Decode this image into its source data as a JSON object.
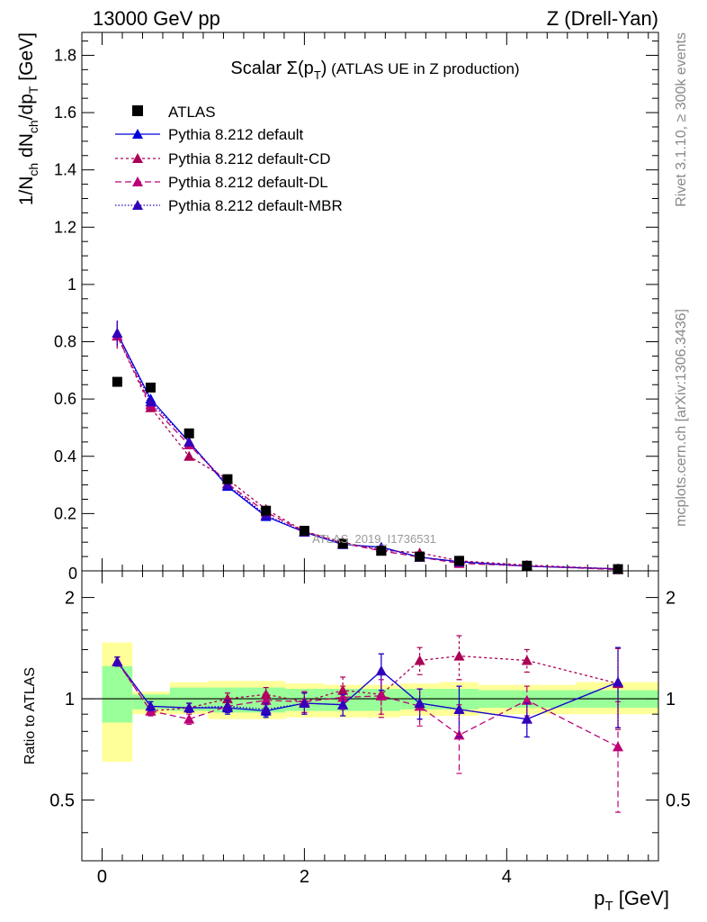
{
  "header": {
    "left": "13000 GeV pp",
    "right": "Z (Drell-Yan)"
  },
  "side": {
    "rivet": "Rivet 3.1.10, ≥ 300k events",
    "mcplots": "mcplots.cern.ch [arXiv:1306.3436]"
  },
  "colors": {
    "data": "#000000",
    "default": "#0000dd",
    "cd": "#aa0055",
    "dl": "#bb0077",
    "mbr": "#3300bb",
    "band_yellow": "#ffff99",
    "band_green": "#99ff99"
  },
  "chart_data": [
    {
      "type": "scatter",
      "title": "Scalar Σ(p_T) (ATLAS UE in Z production)",
      "title_main": "Scalar Σ(p",
      "title_sub": "T",
      "title_close": ")",
      "title_rest": " (ATLAS UE in Z production)",
      "watermark": "ATLAS_2019_I1736531",
      "ylabel": "1/N_ch dN_ch/dp_T [GeV]",
      "xlim": [
        -0.2,
        5.5
      ],
      "ylim": [
        0,
        1.88
      ],
      "yticks": [
        0.2,
        0.4,
        0.6,
        0.8,
        1,
        1.2,
        1.4,
        1.6,
        1.8
      ],
      "ytick_labels": [
        "0.2",
        "0.4",
        "0.6",
        "0.8",
        "1",
        "1.2",
        "1.4",
        "1.6",
        "1.8"
      ],
      "bottom_tick_label": "0",
      "x": [
        0.15,
        0.48,
        0.86,
        1.24,
        1.62,
        2.0,
        2.38,
        2.76,
        3.14,
        3.53,
        4.2,
        5.1
      ],
      "legend": [
        "ATLAS",
        "Pythia 8.212 default",
        "Pythia 8.212 default-CD",
        "Pythia 8.212 default-DL",
        "Pythia 8.212 default-MBR"
      ],
      "series": [
        {
          "name": "ATLAS",
          "values": [
            0.66,
            0.64,
            0.48,
            0.32,
            0.21,
            0.14,
            0.095,
            0.07,
            0.05,
            0.035,
            0.018,
            0.006
          ]
        },
        {
          "name": "Pythia 8.212 default",
          "values": [
            0.83,
            0.6,
            0.45,
            0.295,
            0.19,
            0.135,
            0.092,
            0.083,
            0.048,
            0.032,
            0.016,
            0.007
          ]
        },
        {
          "name": "Pythia 8.212 default-CD",
          "values": [
            0.82,
            0.57,
            0.4,
            0.32,
            0.215,
            0.138,
            0.1,
            0.072,
            0.063,
            0.035,
            0.02,
            0.0065
          ]
        },
        {
          "name": "Pythia 8.212 default-DL",
          "values": [
            0.82,
            0.58,
            0.44,
            0.305,
            0.205,
            0.137,
            0.096,
            0.07,
            0.048,
            0.026,
            0.017,
            0.0045
          ]
        },
        {
          "name": "Pythia 8.212 default-MBR",
          "values": [
            0.83,
            0.59,
            0.45,
            0.3,
            0.195,
            0.135,
            0.094,
            0.08,
            0.048,
            0.031,
            0.016,
            0.007
          ]
        }
      ]
    },
    {
      "type": "scatter",
      "title": "Ratio to ATLAS",
      "ylabel": "Ratio to ATLAS",
      "xlabel": "p_T [GeV]",
      "xlabel_main": "p",
      "xlabel_sub": "T",
      "xlabel_unit": " [GeV]",
      "xlim": [
        -0.2,
        5.5
      ],
      "ylim": [
        0.33,
        2.4
      ],
      "yscale": "log",
      "yticks": [
        0.5,
        1,
        2
      ],
      "ytick_labels": [
        "0.5",
        "1",
        "2"
      ],
      "xticks": [
        0,
        2,
        4
      ],
      "xtick_labels": [
        "0",
        "2",
        "4"
      ],
      "x": [
        0.15,
        0.48,
        0.86,
        1.24,
        1.62,
        2.0,
        2.38,
        2.76,
        3.14,
        3.53,
        4.2,
        5.1
      ],
      "bin_edges": [
        0.0,
        0.3,
        0.67,
        1.05,
        1.43,
        1.81,
        2.19,
        2.57,
        2.95,
        3.33,
        3.72,
        4.68,
        5.5
      ],
      "band_yellow": [
        [
          0.65,
          1.47
        ],
        [
          0.9,
          1.05
        ],
        [
          0.9,
          1.12
        ],
        [
          0.87,
          1.13
        ],
        [
          0.87,
          1.13
        ],
        [
          0.88,
          1.11
        ],
        [
          0.88,
          1.1
        ],
        [
          0.88,
          1.1
        ],
        [
          0.89,
          1.11
        ],
        [
          0.89,
          1.12
        ],
        [
          0.9,
          1.1
        ],
        [
          0.9,
          1.12
        ]
      ],
      "band_green": [
        [
          0.85,
          1.25
        ],
        [
          0.93,
          1.03
        ],
        [
          0.92,
          1.08
        ],
        [
          0.91,
          1.08
        ],
        [
          0.91,
          1.08
        ],
        [
          0.92,
          1.07
        ],
        [
          0.92,
          1.07
        ],
        [
          0.92,
          1.07
        ],
        [
          0.93,
          1.07
        ],
        [
          0.93,
          1.07
        ],
        [
          0.94,
          1.06
        ],
        [
          0.94,
          1.06
        ]
      ],
      "series": [
        {
          "name": "Pythia 8.212 default",
          "values": [
            1.29,
            0.95,
            0.94,
            0.94,
            0.92,
            0.97,
            0.96,
            1.21,
            0.97,
            0.93,
            0.87,
            1.12
          ],
          "errors": [
            0.04,
            0.03,
            0.03,
            0.04,
            0.04,
            0.07,
            0.07,
            0.15,
            0.1,
            0.16,
            0.1,
            0.3
          ]
        },
        {
          "name": "Pythia 8.212 default-CD",
          "values": [
            1.29,
            0.92,
            0.94,
            1.0,
            1.03,
            0.98,
            1.06,
            1.03,
            1.3,
            1.34,
            1.3,
            1.11
          ],
          "errors": [
            0.04,
            0.03,
            0.03,
            0.04,
            0.05,
            0.07,
            0.1,
            0.15,
            0.12,
            0.2,
            0.1,
            0.3
          ]
        },
        {
          "name": "Pythia 8.212 default-DL",
          "values": [
            1.29,
            0.92,
            0.87,
            0.95,
            0.99,
            0.98,
            1.01,
            1.02,
            0.95,
            0.78,
            0.99,
            0.72
          ],
          "errors": [
            0.04,
            0.03,
            0.03,
            0.04,
            0.05,
            0.07,
            0.08,
            0.12,
            0.12,
            0.18,
            0.1,
            0.26
          ]
        },
        {
          "name": "Pythia 8.212 default-MBR",
          "values": [
            1.29,
            0.95,
            0.94,
            0.95,
            0.93,
            0.97,
            0.96,
            1.21,
            0.97,
            0.93,
            0.87,
            1.12
          ],
          "errors": [
            0.04,
            0.03,
            0.03,
            0.04,
            0.04,
            0.07,
            0.07,
            0.15,
            0.1,
            0.16,
            0.1,
            0.3
          ]
        }
      ]
    }
  ]
}
